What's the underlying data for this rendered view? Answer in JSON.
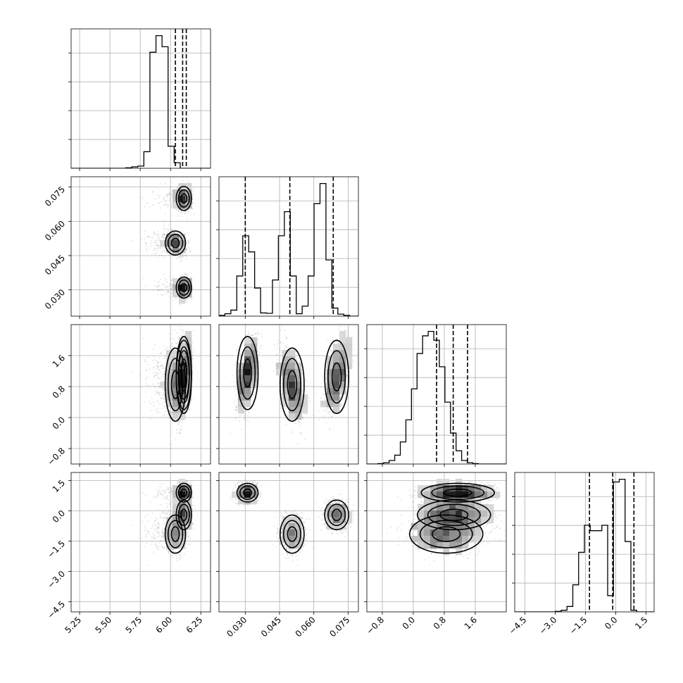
{
  "chart_data": {
    "type": "corner",
    "title": "",
    "grid": true,
    "parameters": [
      {
        "range": [
          5.18,
          6.33
        ],
        "ticks": [
          5.25,
          5.5,
          5.75,
          6.0,
          6.25
        ],
        "tick_labels": [
          "5.25",
          "5.50",
          "5.75",
          "6.00",
          "6.25"
        ],
        "quantiles": [
          6.04,
          6.1,
          6.13
        ]
      },
      {
        "range": [
          0.0185,
          0.0795
        ],
        "ticks": [
          0.03,
          0.045,
          0.06,
          0.075
        ],
        "tick_labels": [
          "0.030",
          "0.045",
          "0.060",
          "0.075"
        ],
        "quantiles": [
          0.03,
          0.0495,
          0.0685
        ]
      },
      {
        "range": [
          -1.2,
          2.4
        ],
        "ticks": [
          -0.8,
          0.0,
          0.8,
          1.6
        ],
        "tick_labels": [
          "−0.8",
          "0.0",
          "0.8",
          "1.6"
        ],
        "quantiles": [
          0.6,
          1.03,
          1.4
        ]
      },
      {
        "range": [
          -5.0,
          1.9
        ],
        "ticks": [
          -4.5,
          -3.0,
          -1.5,
          0.0,
          1.5
        ],
        "tick_labels": [
          "−4.5",
          "−3.0",
          "−1.5",
          "0.0",
          "1.5"
        ],
        "quantiles": [
          -1.3,
          -0.15,
          0.9
        ]
      }
    ],
    "histograms": [
      {
        "edges_start": 5.18,
        "bin_width": 0.05,
        "counts": [
          0,
          0,
          0,
          0,
          0,
          0,
          0,
          0,
          0,
          2,
          5,
          8,
          60,
          420,
          480,
          440,
          80,
          20,
          0,
          0,
          0,
          0,
          0
        ]
      },
      {
        "edges_start": 0.0185,
        "bin_width": 0.0026,
        "counts": [
          2,
          6,
          15,
          100,
          200,
          160,
          70,
          8,
          7,
          90,
          200,
          260,
          100,
          6,
          25,
          100,
          280,
          330,
          140,
          20,
          5,
          2,
          0,
          0
        ]
      },
      {
        "edges_start": -1.2,
        "bin_width": 0.144,
        "counts": [
          0,
          0,
          1,
          3,
          8,
          20,
          50,
          100,
          170,
          250,
          290,
          300,
          280,
          220,
          140,
          70,
          30,
          8,
          3,
          1,
          0,
          0,
          0,
          0,
          0
        ]
      },
      {
        "edges_start": -5.0,
        "bin_width": 0.2875,
        "counts": [
          0,
          0,
          0,
          0,
          0,
          0,
          0,
          1,
          3,
          10,
          50,
          110,
          160,
          150,
          150,
          160,
          30,
          240,
          245,
          130,
          3,
          0,
          0,
          0
        ]
      }
    ],
    "modes": [
      {
        "x": 6.11,
        "y": 0.07,
        "sx": 0.03,
        "sy": 0.0025,
        "r": 0.0,
        "n": 1100
      },
      {
        "x": 6.04,
        "y": 0.0505,
        "sx": 0.04,
        "sy": 0.0025,
        "r": -0.3,
        "n": 1100
      },
      {
        "x": 6.11,
        "y": 0.031,
        "sx": 0.03,
        "sy": 0.0022,
        "r": 0.0,
        "n": 1100
      }
    ],
    "mode_p3": [
      {
        "m": 1.05,
        "s": 0.45,
        "r12": 0.2,
        "r13": 0.35,
        "r23": 0.55
      },
      {
        "m": 0.85,
        "s": 0.45,
        "r12": 0.0,
        "r13": -0.2,
        "r23": -0.5
      },
      {
        "m": 1.15,
        "s": 0.45,
        "r12": 0.0,
        "r13": 0.55,
        "r23": 0.5
      }
    ],
    "mode_p4": [
      {
        "m": -0.2,
        "s": 0.35
      },
      {
        "m": -1.15,
        "s": 0.45
      },
      {
        "m": 0.9,
        "s": 0.22
      }
    ]
  }
}
